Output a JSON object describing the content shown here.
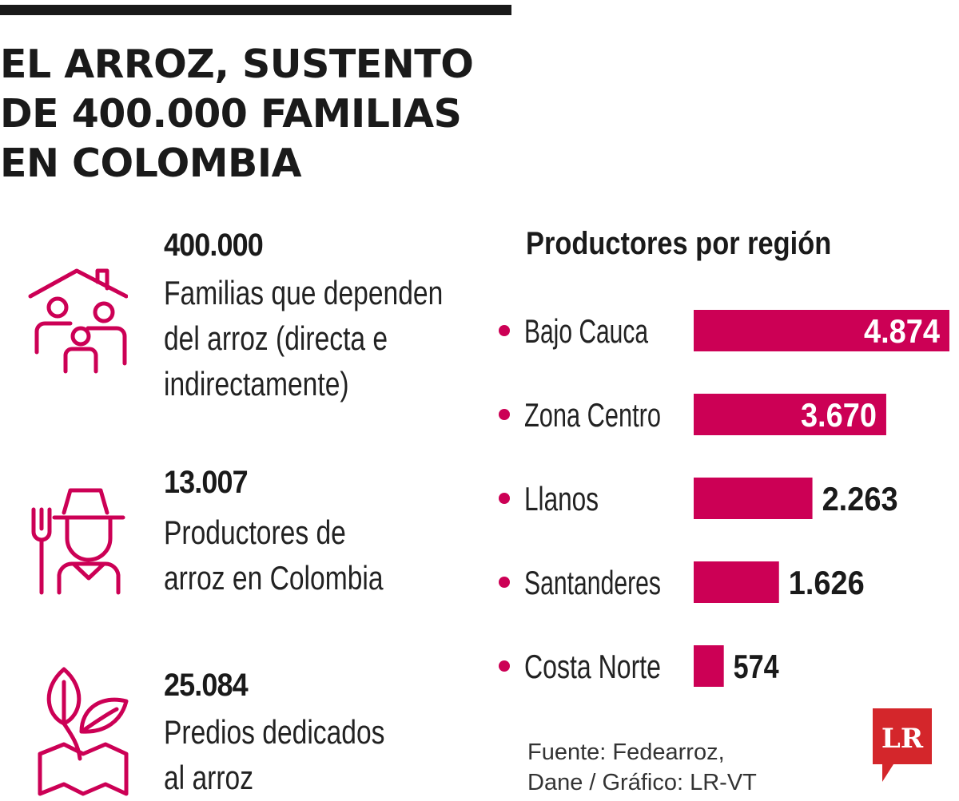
{
  "headline": {
    "line1": "EL ARROZ, SUSTENTO",
    "line2": "DE 400.000 FAMILIAS",
    "line3": "EN COLOMBIA"
  },
  "stats": [
    {
      "icon": "house-family-icon",
      "value": "400.000",
      "lines": [
        "Familias que dependen",
        "del arroz (directa e",
        "indirectamente)"
      ]
    },
    {
      "icon": "farmer-icon",
      "value": "13.007",
      "lines": [
        "Productores de",
        "arroz en Colombia"
      ]
    },
    {
      "icon": "sprout-map-icon",
      "value": "25.084",
      "lines": [
        "Predios dedicados",
        "al arroz"
      ]
    }
  ],
  "chart_data": {
    "type": "bar",
    "orientation": "horizontal",
    "title": "Productores por región",
    "categories": [
      "Bajo Cauca",
      "Zona Centro",
      "Llanos",
      "Santanderes",
      "Costa Norte"
    ],
    "values": [
      4874,
      3670,
      2263,
      1626,
      574
    ],
    "value_labels": [
      "4.874",
      "3.670",
      "2.263",
      "1.626",
      "574"
    ],
    "xlim": [
      0,
      4874
    ],
    "grid": false,
    "legend": "none"
  },
  "source": {
    "line1": "Fuente: Fedearroz,",
    "line2": "Dane / Gráfico: LR-VT"
  },
  "logo": {
    "text": "LR"
  },
  "colors": {
    "accent": "#cc0055",
    "text": "#1a1a1a",
    "logo": "#d4262b"
  }
}
